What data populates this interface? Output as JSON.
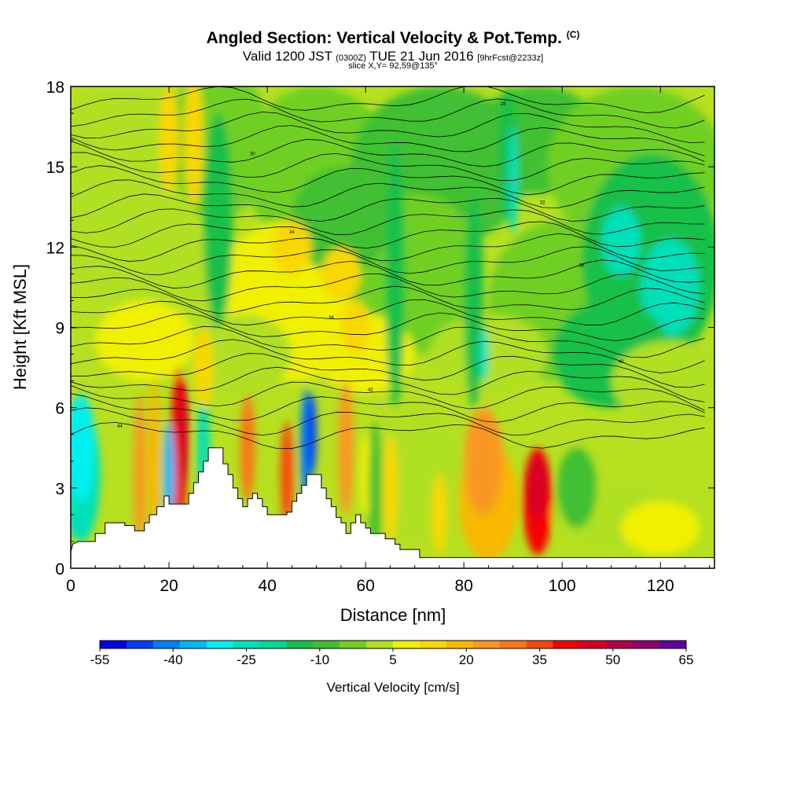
{
  "header": {
    "title_main": "Angled Section: Vertical Velocity & Pot.Temp.",
    "title_mark": "(C)",
    "valid_a": "Valid 1200 JST",
    "valid_b": "(0300Z)",
    "valid_c": "TUE 21 Jun 2016",
    "valid_d": "[9hrFcst@2233z]",
    "slice": "slice X,Y= 92,59@135°"
  },
  "chart_data": {
    "type": "heatmap",
    "title": "Angled Section: Vertical Velocity & Pot.Temp.",
    "xlabel": "Distance [nm]",
    "ylabel": "Height [Kft MSL]",
    "xlim": [
      0,
      131
    ],
    "ylim": [
      0,
      18
    ],
    "x_ticks": [
      0,
      20,
      40,
      60,
      80,
      100,
      120
    ],
    "y_ticks": [
      0,
      3,
      6,
      9,
      12,
      15,
      18
    ],
    "terrain": [
      [
        0,
        0.6
      ],
      [
        0.4,
        0.9
      ],
      [
        1.5,
        1.0
      ],
      [
        5,
        1.0
      ],
      [
        5,
        1.3
      ],
      [
        7,
        1.3
      ],
      [
        7,
        1.7
      ],
      [
        11,
        1.7
      ],
      [
        11,
        1.6
      ],
      [
        13,
        1.6
      ],
      [
        13,
        1.4
      ],
      [
        15,
        1.4
      ],
      [
        15,
        1.7
      ],
      [
        16,
        1.7
      ],
      [
        16,
        2.0
      ],
      [
        17.5,
        2.0
      ],
      [
        17.5,
        2.3
      ],
      [
        19,
        2.3
      ],
      [
        19,
        2.7
      ],
      [
        20,
        2.7
      ],
      [
        20,
        2.4
      ],
      [
        24,
        2.4
      ],
      [
        24,
        2.8
      ],
      [
        25,
        2.8
      ],
      [
        25,
        3.2
      ],
      [
        26,
        3.2
      ],
      [
        26,
        3.6
      ],
      [
        27,
        3.6
      ],
      [
        27,
        4.0
      ],
      [
        28,
        4.0
      ],
      [
        28,
        4.5
      ],
      [
        31,
        4.5
      ],
      [
        31,
        3.9
      ],
      [
        32,
        3.9
      ],
      [
        32,
        3.5
      ],
      [
        33,
        3.5
      ],
      [
        33,
        3.0
      ],
      [
        34,
        3.0
      ],
      [
        34,
        2.6
      ],
      [
        35,
        2.6
      ],
      [
        35,
        2.3
      ],
      [
        36,
        2.3
      ],
      [
        36,
        2.6
      ],
      [
        37,
        2.6
      ],
      [
        37,
        2.8
      ],
      [
        38,
        2.8
      ],
      [
        38,
        2.6
      ],
      [
        39,
        2.6
      ],
      [
        39,
        2.3
      ],
      [
        40,
        2.3
      ],
      [
        40,
        2.0
      ],
      [
        44,
        2.0
      ],
      [
        44,
        2.1
      ],
      [
        45,
        2.1
      ],
      [
        45,
        2.5
      ],
      [
        46,
        2.5
      ],
      [
        46,
        2.8
      ],
      [
        47,
        2.8
      ],
      [
        47,
        3.1
      ],
      [
        48,
        3.1
      ],
      [
        48,
        3.5
      ],
      [
        51,
        3.5
      ],
      [
        51,
        3.0
      ],
      [
        52,
        3.0
      ],
      [
        52,
        2.6
      ],
      [
        53,
        2.6
      ],
      [
        53,
        2.3
      ],
      [
        54,
        2.3
      ],
      [
        54,
        1.9
      ],
      [
        55,
        1.9
      ],
      [
        55,
        1.7
      ],
      [
        56,
        1.7
      ],
      [
        56,
        1.3
      ],
      [
        57,
        1.3
      ],
      [
        57,
        1.7
      ],
      [
        58,
        1.7
      ],
      [
        58,
        2.0
      ],
      [
        59,
        2.0
      ],
      [
        59,
        1.7
      ],
      [
        60,
        1.7
      ],
      [
        60,
        1.5
      ],
      [
        61,
        1.5
      ],
      [
        61,
        1.3
      ],
      [
        64,
        1.3
      ],
      [
        64,
        1.1
      ],
      [
        66,
        1.1
      ],
      [
        66,
        0.9
      ],
      [
        67,
        0.9
      ],
      [
        67,
        0.7
      ],
      [
        71,
        0.7
      ],
      [
        71,
        0.4
      ],
      [
        131,
        0.4
      ]
    ],
    "colorbar": {
      "title": "Vertical Velocity [cm/s]",
      "tick_labels": [
        "-55",
        "-40",
        "-25",
        "-10",
        "5",
        "20",
        "35",
        "50",
        "65"
      ],
      "colors": [
        "#0000f0",
        "#0040f8",
        "#0080f8",
        "#00b8f8",
        "#00f0f0",
        "#00e0b8",
        "#00d890",
        "#18c048",
        "#40c030",
        "#70d020",
        "#b0e020",
        "#f0f000",
        "#f8d800",
        "#f8b800",
        "#f89820",
        "#f87818",
        "#f84810",
        "#f80000",
        "#d80020",
        "#b00048",
        "#900070",
        "#6000a0"
      ]
    },
    "isentrope_labels": [
      "44",
      "42",
      "40",
      "38",
      "36",
      "34",
      "32",
      "30",
      "28",
      "26"
    ]
  }
}
